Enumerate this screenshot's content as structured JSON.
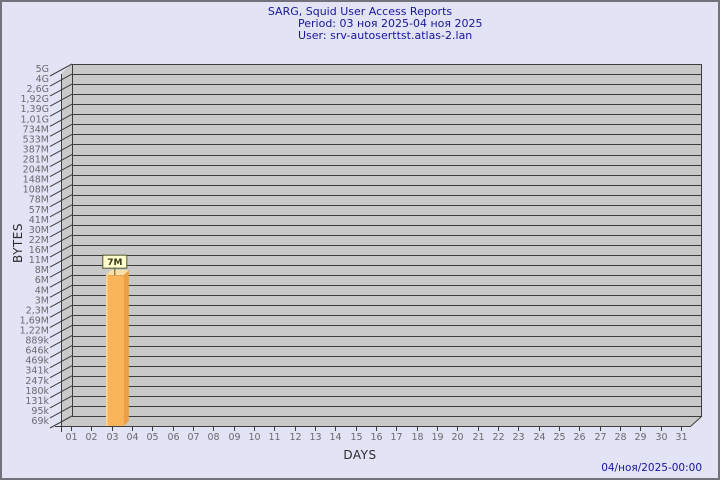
{
  "header": {
    "title": "SARG, Squid User Access Reports",
    "period": "Period: 03 ноя 2025-04 ноя 2025",
    "user": "User: srv-autoserttst.atlas-2.lan"
  },
  "footer": {
    "timestamp": "04/ноя/2025-00:00"
  },
  "colors": {
    "background": "#e3e3f6",
    "frame_border": "#72727c",
    "plot_bg": "#c9c9c9",
    "grid_line": "#3d3d3d",
    "tick_label": "#6a6a70",
    "axis_title": "#2b2b2b",
    "title_text": "#16169b",
    "bar_front": "#fab55a",
    "bar_top": "#fcdfa5",
    "bar_side": "#ec9f44",
    "bar_highlight": "#fdd795",
    "annotation_bg": "#ffffce",
    "annotation_border": "#55552b",
    "annotation_text": "#3a3a18"
  },
  "chart_data": {
    "type": "bar",
    "style": "3d-bar",
    "title": "SARG, Squid User Access Reports",
    "subtitle_lines": [
      "Period: 03 ноя 2025-04 ноя 2025",
      "User: srv-autoserttst.atlas-2.lan"
    ],
    "xlabel": "DAYS",
    "ylabel": "BYTES",
    "grid": "horizontal",
    "legend": "none",
    "x_categories": [
      "01",
      "02",
      "03",
      "04",
      "05",
      "06",
      "07",
      "08",
      "09",
      "10",
      "11",
      "12",
      "13",
      "14",
      "15",
      "16",
      "17",
      "18",
      "19",
      "20",
      "21",
      "22",
      "23",
      "24",
      "25",
      "26",
      "27",
      "28",
      "29",
      "30",
      "31"
    ],
    "y_axis_labels": [
      "5G",
      "4G",
      "2,6G",
      "1,92G",
      "1,39G",
      "1,01G",
      "734M",
      "533M",
      "387M",
      "281M",
      "204M",
      "148M",
      "108M",
      "78M",
      "57M",
      "41M",
      "30M",
      "22M",
      "16M",
      "11M",
      "8M",
      "6M",
      "4M",
      "3M",
      "2,3M",
      "1,69M",
      "1,22M",
      "889k",
      "646k",
      "469k",
      "341k",
      "247k",
      "180k",
      "131k",
      "95k",
      "69k"
    ],
    "ylim": [
      "69k",
      "5G"
    ],
    "bars": [
      {
        "category": "03",
        "value_label": "7M",
        "value_bytes": 7000000
      }
    ]
  }
}
